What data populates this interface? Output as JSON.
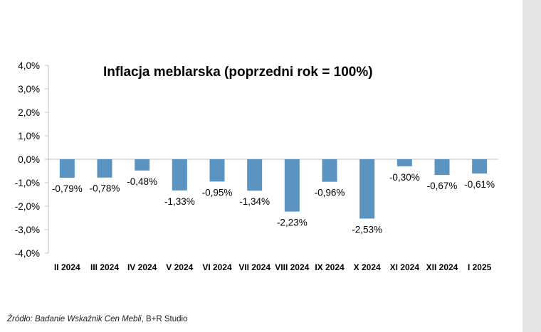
{
  "chart_data": {
    "type": "bar",
    "title": "Inflacja meblarska (poprzedni rok = 100%)",
    "categories": [
      "II 2024",
      "III 2024",
      "IV 2024",
      "V 2024",
      "VI 2024",
      "VII 2024",
      "VIII 2024",
      "IX 2024",
      "X 2024",
      "XI 2024",
      "XII 2024",
      "I 2025"
    ],
    "values": [
      -0.79,
      -0.78,
      -0.48,
      -1.33,
      -0.95,
      -1.34,
      -2.23,
      -0.96,
      -2.53,
      -0.3,
      -0.67,
      -0.61
    ],
    "data_labels": [
      "-0,79%",
      "-0,78%",
      "-0,48%",
      "-1,33%",
      "-0,95%",
      "-1,34%",
      "-2,23%",
      "-0,96%",
      "-2,53%",
      "-0,30%",
      "-0,67%",
      "-0,61%"
    ],
    "ylim": [
      -4,
      4
    ],
    "yticks": [
      4,
      3,
      2,
      1,
      0,
      -1,
      -2,
      -3,
      -4
    ],
    "ytick_labels": [
      "4,0%",
      "3,0%",
      "2,0%",
      "1,0%",
      "0,0%",
      "-1,0%",
      "-2,0%",
      "-3,0%",
      "-4,0%"
    ],
    "bar_color": "#5b93c1",
    "grid": false,
    "legend": "none"
  },
  "source": {
    "prefix": "Źródło: Badanie Wskaźnik Cen Mebli",
    "suffix": ", B+R Studio"
  }
}
